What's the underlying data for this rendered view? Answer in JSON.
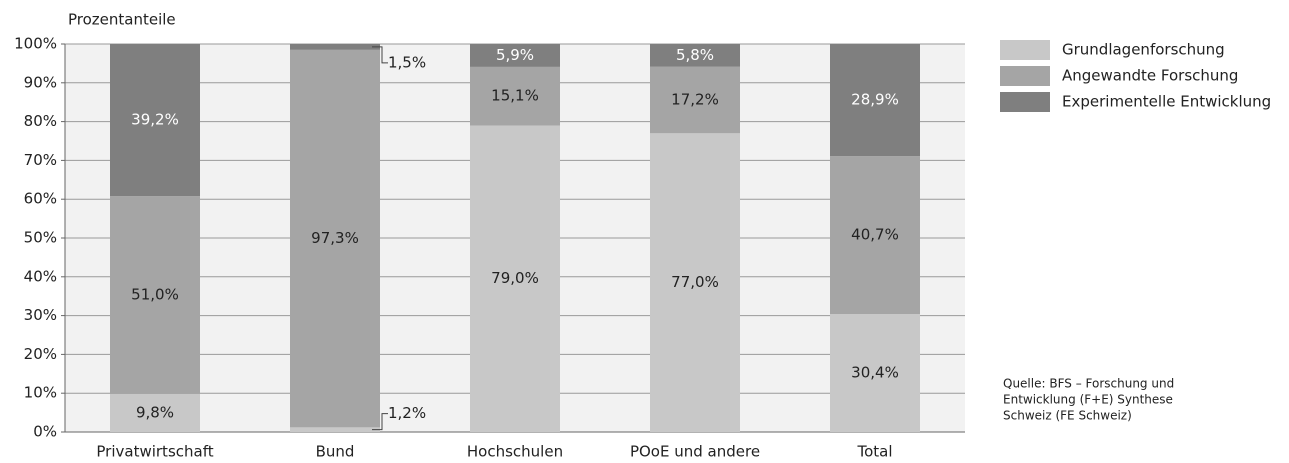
{
  "chart_data": {
    "type": "stacked_bar",
    "y_label": "Prozentanteile",
    "categories": [
      "Privatwirtschaft",
      "Bund",
      "Hochschulen",
      "POoE und andere",
      "Total"
    ],
    "series": [
      {
        "name": "Grundlagenforschung",
        "color": "#c8c8c8",
        "values": [
          9.8,
          1.2,
          79.0,
          77.0,
          30.4
        ],
        "value_labels": [
          "9,8%",
          "1,2%",
          "79,0%",
          "77,0%",
          "30,4%"
        ]
      },
      {
        "name": "Angewandte Forschung",
        "color": "#a5a5a5",
        "values": [
          51.0,
          97.3,
          15.1,
          17.2,
          40.7
        ],
        "value_labels": [
          "51,0%",
          "97,3%",
          "15,1%",
          "17,2%",
          "40,7%"
        ]
      },
      {
        "name": "Experimentelle Entwicklung",
        "color": "#7f7f7f",
        "values": [
          39.2,
          1.5,
          5.9,
          5.8,
          28.9
        ],
        "value_labels": [
          "39,2%",
          "1,5%",
          "5,9%",
          "5,8%",
          "28,9%"
        ]
      }
    ],
    "ylim": [
      0,
      100
    ],
    "yticks": [
      {
        "value": 0,
        "label": "0%"
      },
      {
        "value": 10,
        "label": "10%"
      },
      {
        "value": 20,
        "label": "20%"
      },
      {
        "value": 30,
        "label": "30%"
      },
      {
        "value": 40,
        "label": "40%"
      },
      {
        "value": 50,
        "label": "50%"
      },
      {
        "value": 60,
        "label": "60%"
      },
      {
        "value": 70,
        "label": "70%"
      },
      {
        "value": 80,
        "label": "80%"
      },
      {
        "value": 90,
        "label": "90%"
      },
      {
        "value": 100,
        "label": "100%"
      }
    ],
    "grid": true,
    "legend": "upper right",
    "annotations": [
      "Quelle: BFS – Forschung und",
      "Entwicklung (F+E) Synthese",
      "Schweiz (FE Schweiz)"
    ]
  }
}
